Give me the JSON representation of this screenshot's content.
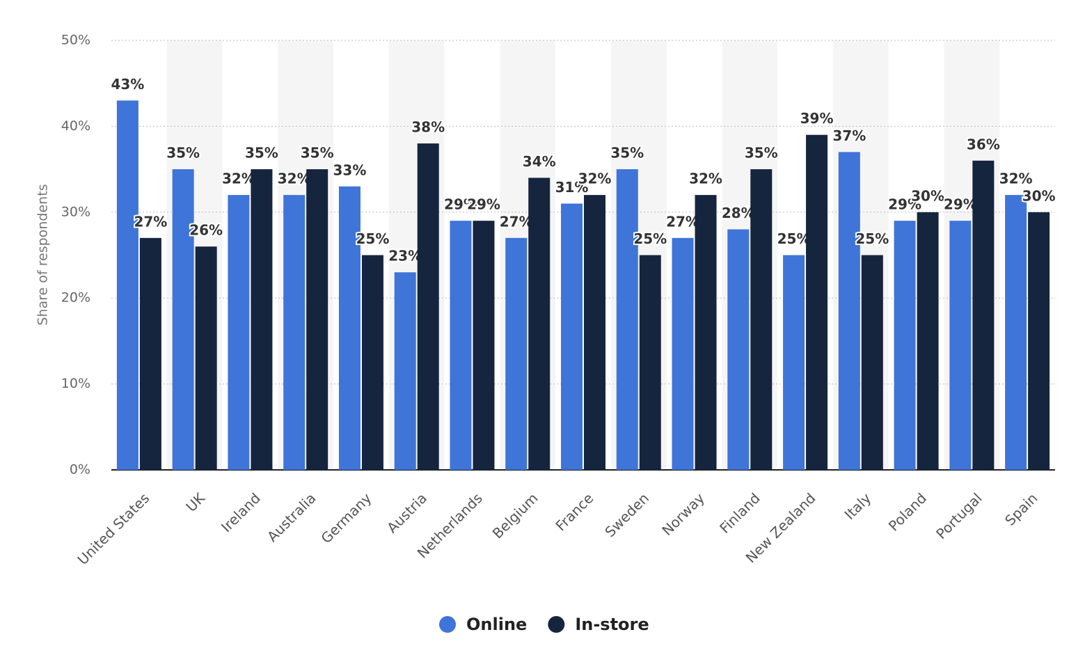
{
  "chart_data": {
    "type": "bar",
    "y_label": "Share of respondents",
    "categories": [
      "United States",
      "UK",
      "Ireland",
      "Australia",
      "Germany",
      "Austria",
      "Netherlands",
      "Belgium",
      "France",
      "Sweden",
      "Norway",
      "Finland",
      "New Zealand",
      "Italy",
      "Poland",
      "Portugal",
      "Spain"
    ],
    "series": [
      {
        "name": "Online",
        "color": "#3f74d8",
        "values": [
          43,
          35,
          32,
          32,
          33,
          23,
          29,
          27,
          31,
          35,
          27,
          28,
          25,
          37,
          29,
          29,
          32
        ],
        "value_labels": [
          "43%",
          "35%",
          "32%",
          "32%",
          "33%",
          "23%",
          "29%",
          "27%",
          "31%",
          "35%",
          "27%",
          "28%",
          "25%",
          "37%",
          "29%",
          "29%",
          "32%"
        ]
      },
      {
        "name": "In-store",
        "color": "#15253e",
        "values": [
          27,
          26,
          35,
          35,
          25,
          38,
          29,
          34,
          32,
          25,
          32,
          35,
          39,
          25,
          30,
          36,
          30
        ],
        "value_labels": [
          "27%",
          "26%",
          "35%",
          "35%",
          "25%",
          "38%",
          "29%",
          "34%",
          "32%",
          "25%",
          "32%",
          "35%",
          "39%",
          "25%",
          "30%",
          "36%",
          "30%"
        ]
      }
    ],
    "ylim": [
      0,
      50
    ],
    "yticks": [
      {
        "value": 0,
        "label": "0%"
      },
      {
        "value": 10,
        "label": "10%"
      },
      {
        "value": 20,
        "label": "20%"
      },
      {
        "value": 30,
        "label": "30%"
      },
      {
        "value": 40,
        "label": "40%"
      },
      {
        "value": 50,
        "label": "50%"
      }
    ],
    "grid": true,
    "legend": "bottom"
  }
}
